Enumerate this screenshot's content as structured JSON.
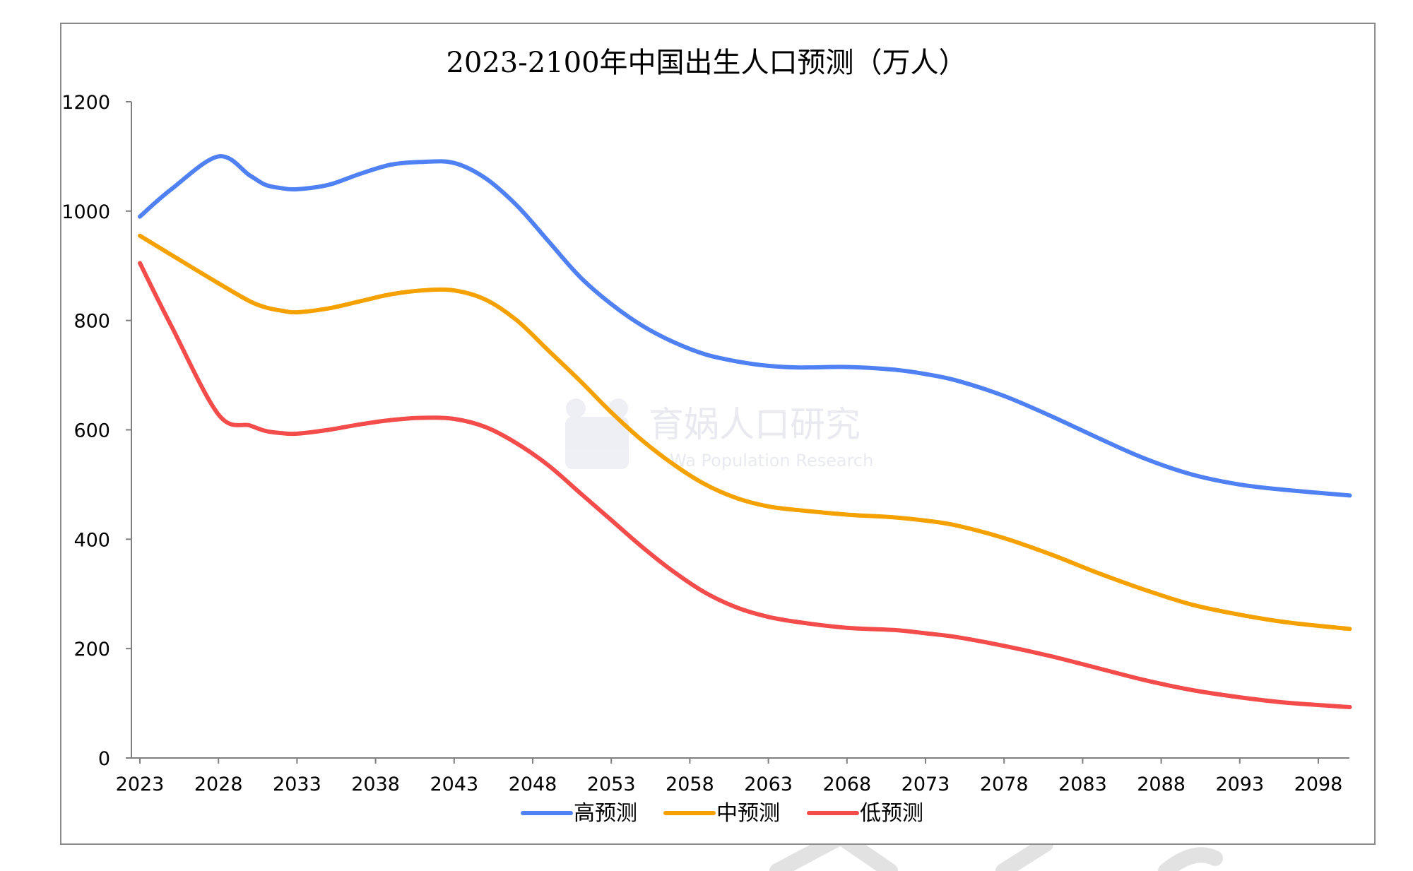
{
  "chart_data": {
    "type": "line",
    "title": "2023-2100年中国出生人口预测（万人）",
    "xlabel": "",
    "ylabel": "",
    "ylim": [
      0,
      1200
    ],
    "xlim": [
      2023,
      2100
    ],
    "yticks": [
      "0",
      "200",
      "400",
      "600",
      "800",
      "1000",
      "1200"
    ],
    "xticks": [
      "2023",
      "2028",
      "2033",
      "2038",
      "2043",
      "2048",
      "2053",
      "2058",
      "2063",
      "2068",
      "2073",
      "2078",
      "2083",
      "2088",
      "2093",
      "2098"
    ],
    "grid": false,
    "legend_position": "bottom",
    "x": [
      2023,
      2025,
      2028,
      2030,
      2031,
      2032,
      2033,
      2035,
      2037,
      2039,
      2041,
      2043,
      2045,
      2047,
      2049,
      2051,
      2053,
      2055,
      2057,
      2059,
      2061,
      2063,
      2065,
      2068,
      2071,
      2073,
      2075,
      2078,
      2081,
      2084,
      2087,
      2090,
      2093,
      2096,
      2100
    ],
    "series": [
      {
        "name": "高预测",
        "color": "#4f81f5",
        "values": [
          990,
          1040,
          1100,
          1065,
          1048,
          1042,
          1040,
          1048,
          1068,
          1085,
          1090,
          1088,
          1060,
          1010,
          945,
          880,
          830,
          790,
          760,
          738,
          725,
          717,
          714,
          715,
          710,
          702,
          690,
          662,
          625,
          585,
          547,
          518,
          500,
          490,
          480
        ]
      },
      {
        "name": "中预测",
        "color": "#f5a100",
        "values": [
          955,
          920,
          868,
          835,
          824,
          818,
          815,
          822,
          835,
          848,
          855,
          855,
          838,
          800,
          745,
          690,
          632,
          580,
          536,
          500,
          475,
          460,
          453,
          445,
          440,
          434,
          425,
          402,
          372,
          338,
          307,
          280,
          262,
          248,
          236
        ]
      },
      {
        "name": "低预测",
        "color": "#f44b4b",
        "values": [
          905,
          790,
          628,
          608,
          598,
          594,
          593,
          600,
          610,
          618,
          622,
          620,
          605,
          575,
          535,
          485,
          435,
          385,
          340,
          302,
          275,
          258,
          248,
          238,
          234,
          228,
          221,
          205,
          186,
          164,
          142,
          124,
          111,
          101,
          93
        ]
      }
    ]
  }
}
